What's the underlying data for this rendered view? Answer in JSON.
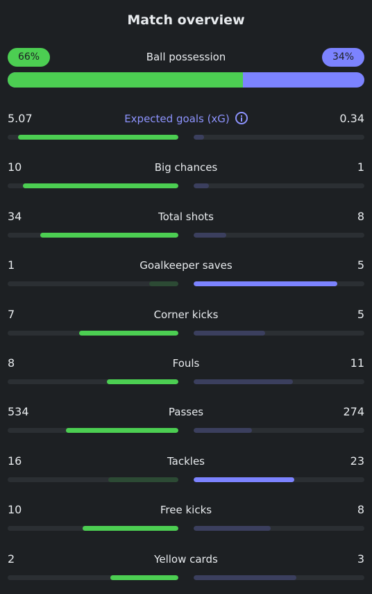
{
  "title": "Match overview",
  "possession": {
    "label": "Ball possession",
    "home": "66%",
    "away": "34%",
    "home_fraction": 0.66
  },
  "colors": {
    "home": "#4cce52",
    "away": "#7c83ff",
    "link": "#8e94ff",
    "background": "#1d2023"
  },
  "stats": [
    {
      "label": "Expected goals (xG)",
      "home": "5.07",
      "away": "0.34",
      "home_fraction": 0.94,
      "away_fraction": 0.06,
      "winner": "home",
      "info_icon": "info-icon"
    },
    {
      "label": "Big chances",
      "home": "10",
      "away": "1",
      "home_fraction": 0.91,
      "away_fraction": 0.09,
      "winner": "home"
    },
    {
      "label": "Total shots",
      "home": "34",
      "away": "8",
      "home_fraction": 0.81,
      "away_fraction": 0.19,
      "winner": "home"
    },
    {
      "label": "Goalkeeper saves",
      "home": "1",
      "away": "5",
      "home_fraction": 0.17,
      "away_fraction": 0.84,
      "winner": "away"
    },
    {
      "label": "Corner kicks",
      "home": "7",
      "away": "5",
      "home_fraction": 0.58,
      "away_fraction": 0.42,
      "winner": "home"
    },
    {
      "label": "Fouls",
      "home": "8",
      "away": "11",
      "home_fraction": 0.42,
      "away_fraction": 0.58,
      "winner": "home"
    },
    {
      "label": "Passes",
      "home": "534",
      "away": "274",
      "home_fraction": 0.66,
      "away_fraction": 0.34,
      "winner": "home"
    },
    {
      "label": "Tackles",
      "home": "16",
      "away": "23",
      "home_fraction": 0.41,
      "away_fraction": 0.59,
      "winner": "away"
    },
    {
      "label": "Free kicks",
      "home": "10",
      "away": "8",
      "home_fraction": 0.56,
      "away_fraction": 0.45,
      "winner": "home"
    },
    {
      "label": "Yellow cards",
      "home": "2",
      "away": "3",
      "home_fraction": 0.4,
      "away_fraction": 0.6,
      "winner": "home"
    }
  ]
}
